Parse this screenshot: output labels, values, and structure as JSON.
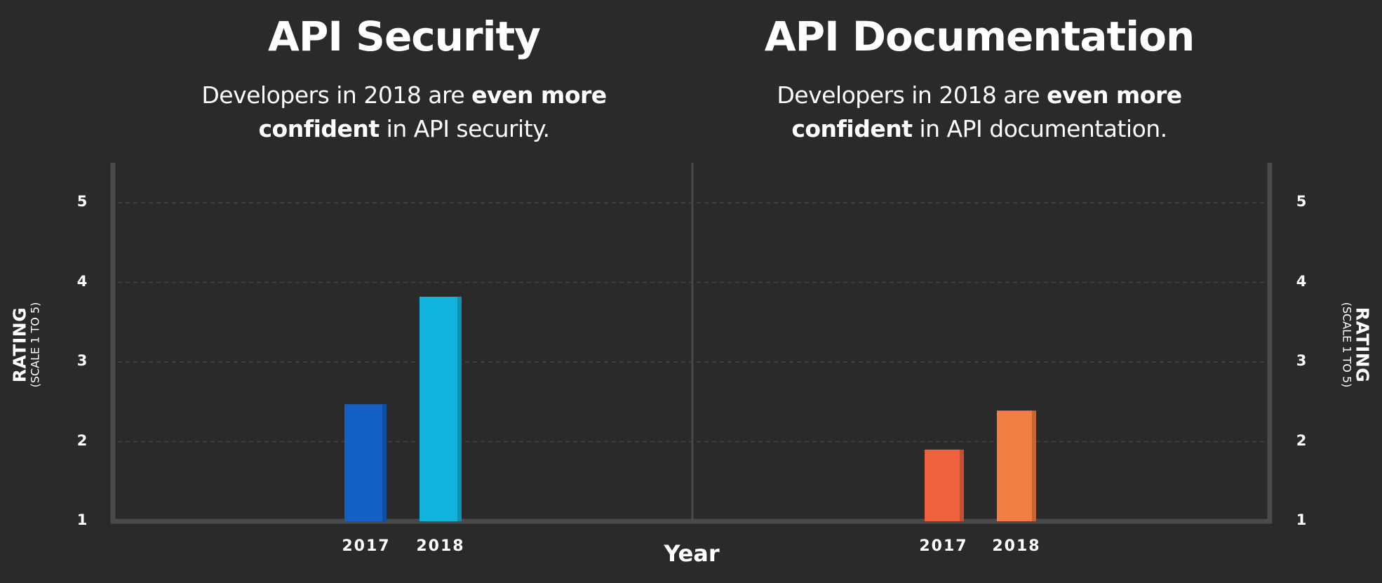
{
  "chart_data": [
    {
      "type": "bar",
      "title": "API Security",
      "subtitle": {
        "line1_pre": "Developers in 2018 are ",
        "line1_bold": "even more",
        "line2_bold": "confident",
        "line2_post": " in API security."
      },
      "categories": [
        "2017",
        "2018"
      ],
      "values": [
        2.47,
        3.82
      ],
      "colors": [
        "#1560c4",
        "#0fb3db"
      ],
      "ylabel": "RATING",
      "ylabel_sub": "(SCALE 1 TO 5)",
      "ylim": [
        1,
        5.5
      ],
      "yticks": [
        "1",
        "2",
        "3",
        "4",
        "5"
      ],
      "grid": true
    },
    {
      "type": "bar",
      "title": "API Documentation",
      "subtitle": {
        "line1_pre": "Developers in 2018 are ",
        "line1_bold": "even more",
        "line2_bold": "confident",
        "line2_post": " in API documentation."
      },
      "categories": [
        "2017",
        "2018"
      ],
      "values": [
        1.9,
        2.39
      ],
      "colors": [
        "#ef613c",
        "#f07e45"
      ],
      "ylabel": "RATING",
      "ylabel_sub": "(SCALE 1 TO 5)",
      "ylim": [
        1,
        5.5
      ],
      "yticks": [
        "1",
        "2",
        "3",
        "4",
        "5"
      ],
      "grid": true
    }
  ],
  "xlabel": "Year"
}
